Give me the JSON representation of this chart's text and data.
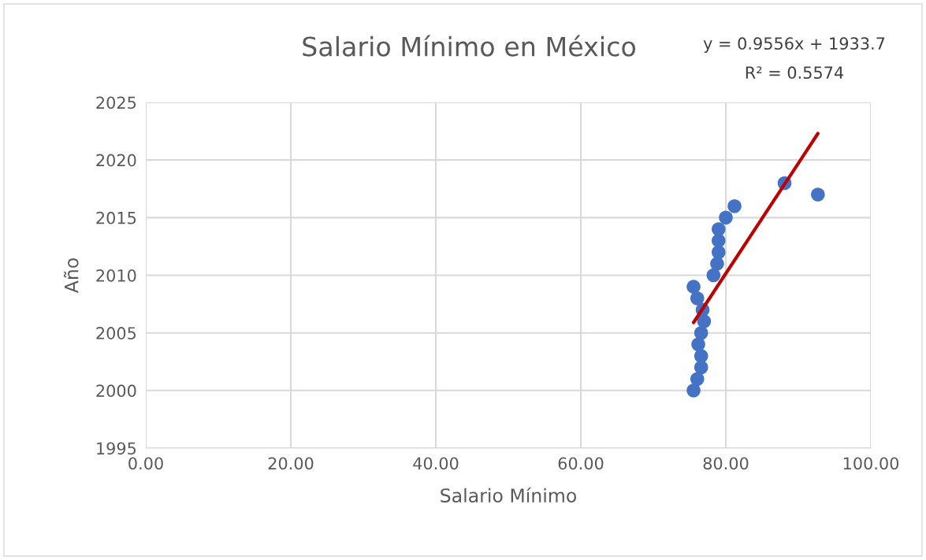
{
  "chart_data": {
    "type": "scatter",
    "title": "Salario Mínimo en México",
    "xlabel": "Salario Mínimo",
    "ylabel": "Año",
    "xlim": [
      0,
      100
    ],
    "xticks": [
      {
        "value": 0,
        "label": "0.00"
      },
      {
        "value": 20,
        "label": "20.00"
      },
      {
        "value": 40,
        "label": "40.00"
      },
      {
        "value": 60,
        "label": "60.00"
      },
      {
        "value": 80,
        "label": "80.00"
      },
      {
        "value": 100,
        "label": "100.00"
      }
    ],
    "ylim": [
      1995,
      2025
    ],
    "yticks": [
      1995,
      2000,
      2005,
      2010,
      2015,
      2020,
      2025
    ],
    "grid": true,
    "legend": false,
    "annotations": [
      "y = 0.9556x + 1933.7",
      "R² = 0.5574"
    ],
    "series": [
      {
        "color": "#4472c4",
        "marker": "circle",
        "x": [
          75.55,
          76.06,
          76.6,
          76.6,
          76.2,
          76.6,
          77.0,
          76.8,
          76.06,
          75.55,
          78.3,
          78.8,
          79.0,
          79.0,
          79.0,
          80.0,
          81.2,
          92.7,
          88.1
        ],
        "values": [
          2000,
          2001,
          2002,
          2003,
          2004,
          2005,
          2006,
          2007,
          2008,
          2009,
          2010,
          2011,
          2012,
          2013,
          2014,
          2015,
          2016,
          2017,
          2018
        ]
      },
      {
        "type": "line",
        "color": "#c00000",
        "marker": "none",
        "line_style": "solid",
        "x": [
          75.55,
          92.7
        ],
        "values": [
          2005.9,
          2022.3
        ]
      }
    ]
  }
}
